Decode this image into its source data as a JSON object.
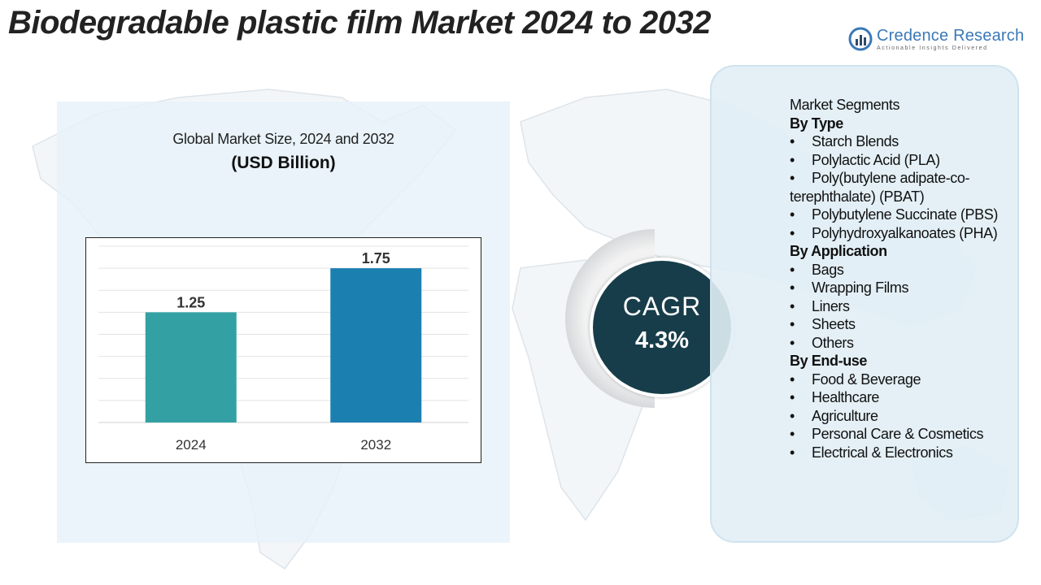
{
  "title": "Biodegradable plastic film Market 2024 to 2032",
  "logo": {
    "name": "Credence Research",
    "tagline": "Actionable Insights Delivered"
  },
  "chart_heading": "Global Market Size, 2024 and 2032",
  "chart_unit": "(USD Billion)",
  "chart_data": {
    "type": "bar",
    "categories": [
      "2024",
      "2032"
    ],
    "values": [
      1.25,
      1.75
    ],
    "value_labels": [
      "1.25",
      "1.75"
    ],
    "title": "Global Market Size, 2024 and 2032",
    "ylabel": "USD Billion",
    "ylim": [
      0,
      2.0
    ],
    "bar_colors": [
      "#33a1a3",
      "#1b80b0"
    ],
    "grid": true
  },
  "cagr": {
    "label": "CAGR",
    "value": "4.3%"
  },
  "segments": {
    "heading": "Market Segments",
    "groups": [
      {
        "title": "By Type",
        "items": [
          "Starch Blends",
          "Polylactic Acid (PLA)",
          "Poly(butylene adipate-co-terephthalate) (PBAT)",
          "Polybutylene Succinate (PBS)",
          "Polyhydroxyalkanoates (PHA)"
        ]
      },
      {
        "title": "By Application",
        "items": [
          "Bags",
          "Wrapping Films",
          "Liners",
          "Sheets",
          "Others"
        ]
      },
      {
        "title": "By End-use",
        "items": [
          "Food & Beverage",
          "Healthcare",
          "Agriculture",
          "Personal Care & Cosmetics",
          "Electrical & Electronics"
        ]
      }
    ]
  },
  "colors": {
    "title": "#222222",
    "panel": "#e7f1f9",
    "cagr_circle": "#173d4a",
    "brand": "#3a78b8"
  }
}
